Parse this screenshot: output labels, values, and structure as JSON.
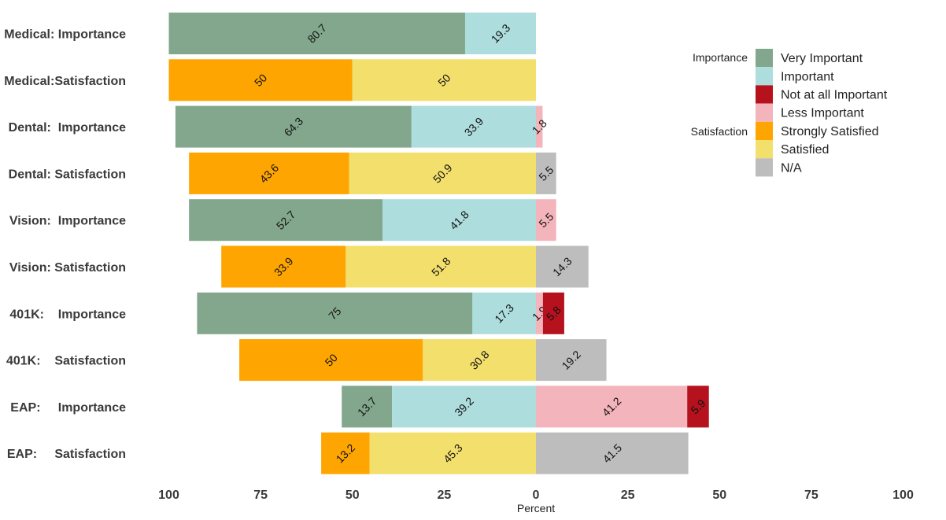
{
  "chart_data": {
    "type": "bar",
    "orientation": "horizontal-diverging",
    "xlabel": "Percent",
    "xlim": [
      -100,
      100
    ],
    "x_ticks": [
      -100,
      -75,
      -50,
      -25,
      0,
      25,
      50,
      75,
      100
    ],
    "x_tick_labels": [
      "100",
      "75",
      "50",
      "25",
      "0",
      "25",
      "50",
      "75",
      "100"
    ],
    "grid": false,
    "legend_position": "right",
    "rows": [
      {
        "group": "Medical:",
        "measure": "Importance",
        "label": "Medical: Importance",
        "left": [
          {
            "category": "Very Important",
            "value": 80.7
          },
          {
            "category": "Important",
            "value": 19.3
          }
        ],
        "right": []
      },
      {
        "group": "Medical:",
        "measure": "Satisfaction",
        "label": "Medical:Satisfaction",
        "left": [
          {
            "category": "Strongly Satisfied",
            "value": 50
          },
          {
            "category": "Satisfied",
            "value": 50
          }
        ],
        "right": []
      },
      {
        "group": "Dental:",
        "measure": "Importance",
        "label": "Dental:  Importance",
        "left": [
          {
            "category": "Very Important",
            "value": 64.3
          },
          {
            "category": "Important",
            "value": 33.9
          }
        ],
        "right": [
          {
            "category": "Less Important",
            "value": 1.8
          }
        ]
      },
      {
        "group": "Dental:",
        "measure": "Satisfaction",
        "label": "Dental: Satisfaction",
        "left": [
          {
            "category": "Strongly Satisfied",
            "value": 43.6
          },
          {
            "category": "Satisfied",
            "value": 50.9
          }
        ],
        "right": [
          {
            "category": "N/A",
            "value": 5.5
          }
        ]
      },
      {
        "group": "Vision:",
        "measure": "Importance",
        "label": "Vision:  Importance",
        "left": [
          {
            "category": "Very Important",
            "value": 52.7
          },
          {
            "category": "Important",
            "value": 41.8
          }
        ],
        "right": [
          {
            "category": "Less Important",
            "value": 5.5
          }
        ]
      },
      {
        "group": "Vision:",
        "measure": "Satisfaction",
        "label": "Vision: Satisfaction",
        "left": [
          {
            "category": "Strongly Satisfied",
            "value": 33.9
          },
          {
            "category": "Satisfied",
            "value": 51.8
          }
        ],
        "right": [
          {
            "category": "N/A",
            "value": 14.3
          }
        ]
      },
      {
        "group": "401K:",
        "measure": "Importance",
        "label": "401K:    Importance",
        "left": [
          {
            "category": "Very Important",
            "value": 75
          },
          {
            "category": "Important",
            "value": 17.3
          }
        ],
        "right": [
          {
            "category": "Less Important",
            "value": 1.9
          },
          {
            "category": "Not at all Important",
            "value": 5.8
          }
        ]
      },
      {
        "group": "401K:",
        "measure": "Satisfaction",
        "label": "401K:    Satisfaction",
        "left": [
          {
            "category": "Strongly Satisfied",
            "value": 50
          },
          {
            "category": "Satisfied",
            "value": 30.8
          }
        ],
        "right": [
          {
            "category": "N/A",
            "value": 19.2
          }
        ]
      },
      {
        "group": "EAP:",
        "measure": "Importance",
        "label": "EAP:     Importance",
        "left": [
          {
            "category": "Very Important",
            "value": 13.7
          },
          {
            "category": "Important",
            "value": 39.2
          }
        ],
        "right": [
          {
            "category": "Less Important",
            "value": 41.2
          },
          {
            "category": "Not at all Important",
            "value": 5.9
          }
        ]
      },
      {
        "group": "EAP:",
        "measure": "Satisfaction",
        "label": "EAP:     Satisfaction",
        "left": [
          {
            "category": "Strongly Satisfied",
            "value": 13.2
          },
          {
            "category": "Satisfied",
            "value": 45.3
          }
        ],
        "right": [
          {
            "category": "N/A",
            "value": 41.5
          }
        ]
      }
    ],
    "legend": {
      "groups": [
        {
          "title": "Importance",
          "entries": [
            "Very Important",
            "Important",
            "Not at all Important",
            "Less Important"
          ]
        },
        {
          "title": "Satisfaction",
          "entries": [
            "Strongly Satisfied",
            "Satisfied",
            "N/A"
          ]
        }
      ]
    },
    "colors": {
      "Very Important": "#82a78c",
      "Important": "#aeddde",
      "Not at all Important": "#b5121e",
      "Less Important": "#f4b4bc",
      "Strongly Satisfied": "#fea501",
      "Satisfied": "#f3df6c",
      "N/A": "#bdbdbd"
    }
  }
}
